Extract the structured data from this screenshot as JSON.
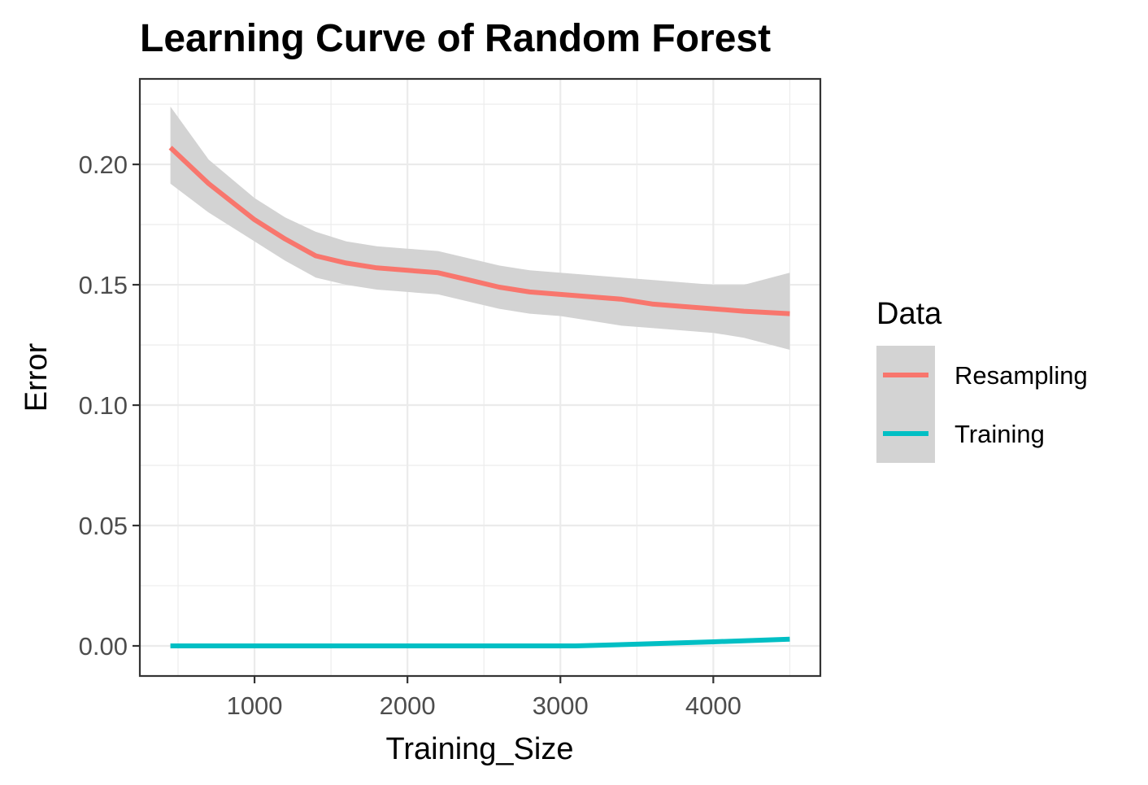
{
  "chart_data": {
    "type": "line",
    "title": "Learning Curve of Random Forest",
    "xlabel": "Training_Size",
    "ylabel": "Error",
    "xlim": [
      250,
      4700
    ],
    "ylim": [
      -0.0125,
      0.2355
    ],
    "x_ticks": [
      1000,
      2000,
      3000,
      4000
    ],
    "x_tick_labels": [
      "1000",
      "2000",
      "3000",
      "4000"
    ],
    "y_ticks": [
      0.0,
      0.05,
      0.1,
      0.15,
      0.2
    ],
    "y_tick_labels": [
      "0.00",
      "0.05",
      "0.10",
      "0.15",
      "0.20"
    ],
    "grid": true,
    "legend": {
      "title": "Data",
      "position": "right"
    },
    "series": [
      {
        "name": "Resampling",
        "color": "#F8766D",
        "x": [
          450,
          700,
          1000,
          1200,
          1400,
          1600,
          1800,
          2000,
          2200,
          2400,
          2600,
          2800,
          3000,
          3200,
          3400,
          3600,
          3800,
          4000,
          4200,
          4500
        ],
        "values": [
          0.207,
          0.192,
          0.177,
          0.169,
          0.162,
          0.159,
          0.157,
          0.156,
          0.155,
          0.152,
          0.149,
          0.147,
          0.146,
          0.145,
          0.144,
          0.142,
          0.141,
          0.14,
          0.139,
          0.138
        ],
        "ci_lower": [
          0.192,
          0.18,
          0.168,
          0.16,
          0.153,
          0.15,
          0.148,
          0.147,
          0.146,
          0.143,
          0.14,
          0.138,
          0.137,
          0.135,
          0.133,
          0.132,
          0.131,
          0.13,
          0.128,
          0.123
        ],
        "ci_upper": [
          0.224,
          0.202,
          0.186,
          0.178,
          0.172,
          0.168,
          0.166,
          0.165,
          0.164,
          0.161,
          0.158,
          0.156,
          0.155,
          0.154,
          0.153,
          0.152,
          0.151,
          0.15,
          0.15,
          0.155
        ]
      },
      {
        "name": "Training",
        "color": "#00BFC4",
        "x": [
          450,
          1000,
          1500,
          2000,
          2500,
          2900,
          3100,
          3500,
          4000,
          4500
        ],
        "values": [
          0.0,
          0.0,
          0.0,
          0.0,
          0.0,
          0.0,
          0.0,
          0.0007,
          0.0017,
          0.0028
        ]
      }
    ],
    "ribbon_color": "#D3D3D3"
  }
}
